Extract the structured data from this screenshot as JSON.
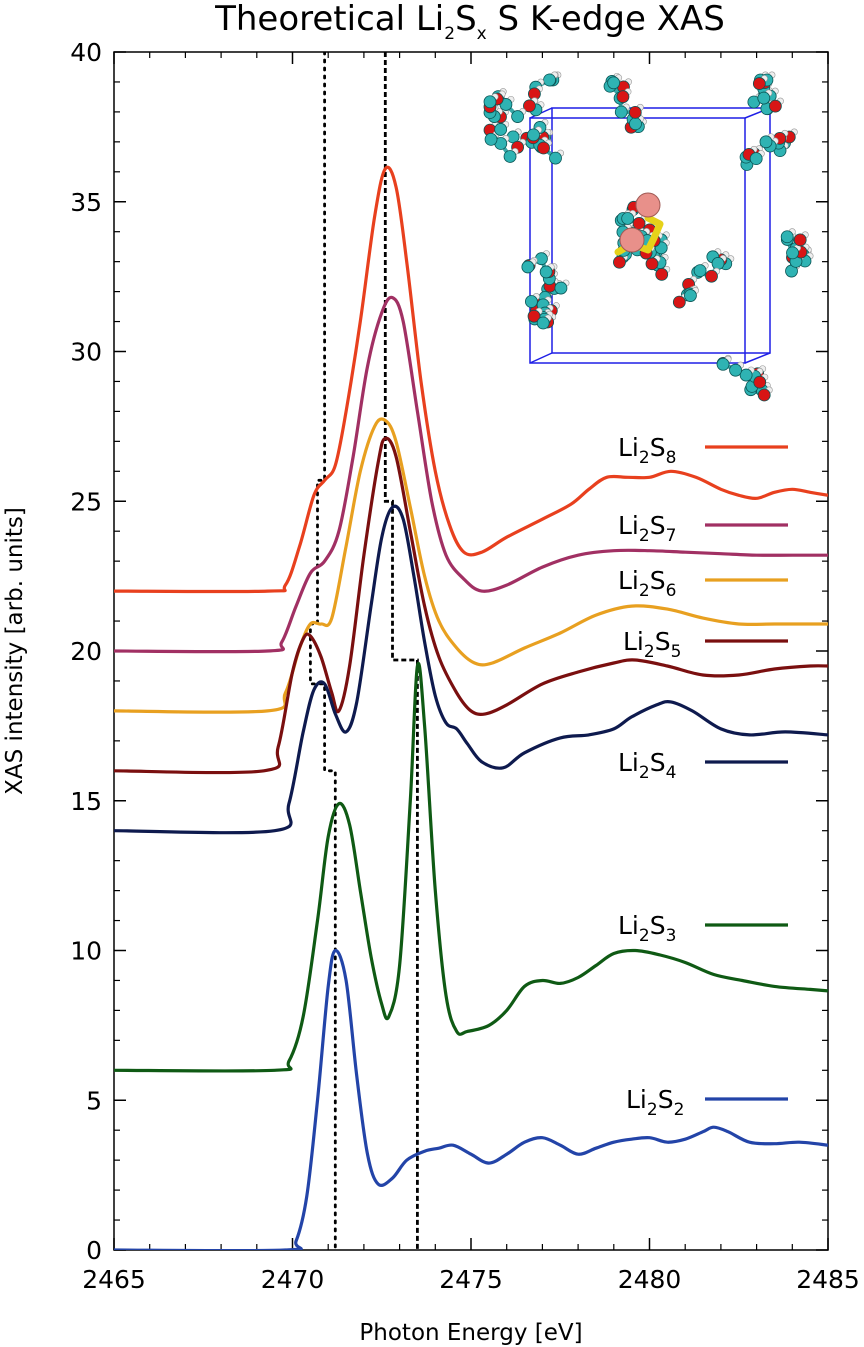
{
  "chart_data": {
    "type": "line",
    "title": {
      "main": "Theoretical Li",
      "sub1": "2",
      "mid": "S",
      "sub2": "x",
      "tail": " S K-edge XAS"
    },
    "xlabel": "Photon Energy [eV]",
    "ylabel": "XAS intensity [arb. units]",
    "xlim": [
      2465,
      2485
    ],
    "ylim": [
      0,
      40
    ],
    "xticks": [
      2465,
      2470,
      2475,
      2480,
      2485
    ],
    "yticks": [
      0,
      5,
      10,
      15,
      20,
      25,
      30,
      35,
      40
    ],
    "grid": false,
    "legend_position": "right",
    "inset": "molecular-structure-image",
    "series": [
      {
        "name": "Li2S8",
        "label_main": "Li",
        "label_sub1": "2",
        "label_mid": "S",
        "label_sub2": "8",
        "color": "#e8401e",
        "points": [
          [
            2465,
            22
          ],
          [
            2469.3,
            22
          ],
          [
            2469.8,
            22.2
          ],
          [
            2470.2,
            23.5
          ],
          [
            2470.6,
            25.2
          ],
          [
            2470.9,
            25.7
          ],
          [
            2471.2,
            26.2
          ],
          [
            2471.5,
            28
          ],
          [
            2471.9,
            31
          ],
          [
            2472.3,
            34.5
          ],
          [
            2472.6,
            36.1
          ],
          [
            2472.9,
            35.5
          ],
          [
            2473.2,
            33
          ],
          [
            2473.6,
            29
          ],
          [
            2474,
            26
          ],
          [
            2474.4,
            24.2
          ],
          [
            2474.8,
            23.3
          ],
          [
            2475.3,
            23.3
          ],
          [
            2476,
            23.8
          ],
          [
            2477,
            24.4
          ],
          [
            2477.8,
            24.9
          ],
          [
            2478.3,
            25.4
          ],
          [
            2478.8,
            25.8
          ],
          [
            2479.4,
            25.8
          ],
          [
            2480,
            25.8
          ],
          [
            2480.6,
            26
          ],
          [
            2481.3,
            25.8
          ],
          [
            2482,
            25.4
          ],
          [
            2482.5,
            25.2
          ],
          [
            2483,
            25.1
          ],
          [
            2483.5,
            25.3
          ],
          [
            2484,
            25.4
          ],
          [
            2484.5,
            25.3
          ],
          [
            2485,
            25.2
          ]
        ]
      },
      {
        "name": "Li2S7",
        "label_main": "Li",
        "label_sub1": "2",
        "label_mid": "S",
        "label_sub2": "7",
        "color": "#a13063",
        "points": [
          [
            2465,
            20
          ],
          [
            2469.3,
            20
          ],
          [
            2469.7,
            20.3
          ],
          [
            2470.1,
            21.5
          ],
          [
            2470.5,
            22.6
          ],
          [
            2470.9,
            23
          ],
          [
            2471.3,
            24
          ],
          [
            2471.7,
            26.5
          ],
          [
            2472.1,
            29.5
          ],
          [
            2472.5,
            31.3
          ],
          [
            2472.8,
            31.8
          ],
          [
            2473.1,
            31
          ],
          [
            2473.5,
            28
          ],
          [
            2473.9,
            25
          ],
          [
            2474.3,
            23.2
          ],
          [
            2474.8,
            22.4
          ],
          [
            2475.3,
            22
          ],
          [
            2476,
            22.2
          ],
          [
            2477,
            22.8
          ],
          [
            2478,
            23.2
          ],
          [
            2479,
            23.35
          ],
          [
            2480,
            23.35
          ],
          [
            2481,
            23.3
          ],
          [
            2482,
            23.25
          ],
          [
            2483,
            23.2
          ],
          [
            2484,
            23.2
          ],
          [
            2485,
            23.2
          ]
        ]
      },
      {
        "name": "Li2S6",
        "label_main": "Li",
        "label_sub1": "2",
        "label_mid": "S",
        "label_sub2": "6",
        "color": "#e8a020",
        "points": [
          [
            2465,
            18
          ],
          [
            2469.3,
            18
          ],
          [
            2469.8,
            18.6
          ],
          [
            2470.2,
            20.1
          ],
          [
            2470.5,
            20.9
          ],
          [
            2470.8,
            20.9
          ],
          [
            2471.1,
            21.1
          ],
          [
            2471.5,
            23.5
          ],
          [
            2471.9,
            26
          ],
          [
            2472.3,
            27.5
          ],
          [
            2472.6,
            27.7
          ],
          [
            2472.9,
            27
          ],
          [
            2473.3,
            24.8
          ],
          [
            2473.7,
            22.5
          ],
          [
            2474.1,
            21
          ],
          [
            2474.6,
            20.1
          ],
          [
            2475.1,
            19.6
          ],
          [
            2475.6,
            19.6
          ],
          [
            2476.5,
            20.1
          ],
          [
            2477.5,
            20.6
          ],
          [
            2478.5,
            21.2
          ],
          [
            2479.5,
            21.5
          ],
          [
            2480.5,
            21.4
          ],
          [
            2481.5,
            21.1
          ],
          [
            2482.5,
            20.9
          ],
          [
            2483.5,
            20.9
          ],
          [
            2484.5,
            20.9
          ],
          [
            2485,
            20.9
          ]
        ]
      },
      {
        "name": "Li2S5",
        "label_main": "Li",
        "label_sub1": "2",
        "label_mid": "S",
        "label_sub2": "5",
        "color": "#7a0f0f",
        "points": [
          [
            2465,
            16
          ],
          [
            2469.2,
            16
          ],
          [
            2469.6,
            16.8
          ],
          [
            2470,
            19.3
          ],
          [
            2470.3,
            20.4
          ],
          [
            2470.5,
            20.5
          ],
          [
            2470.8,
            19.8
          ],
          [
            2471.1,
            18.6
          ],
          [
            2471.3,
            18
          ],
          [
            2471.6,
            19.5
          ],
          [
            2472,
            23.2
          ],
          [
            2472.4,
            26.3
          ],
          [
            2472.6,
            27.1
          ],
          [
            2472.9,
            26.5
          ],
          [
            2473.3,
            24
          ],
          [
            2473.7,
            21.5
          ],
          [
            2474.1,
            19.8
          ],
          [
            2474.6,
            18.6
          ],
          [
            2475,
            18
          ],
          [
            2475.4,
            17.9
          ],
          [
            2476,
            18.2
          ],
          [
            2477,
            18.9
          ],
          [
            2478,
            19.3
          ],
          [
            2479,
            19.6
          ],
          [
            2479.6,
            19.7
          ],
          [
            2480.5,
            19.5
          ],
          [
            2481.5,
            19.2
          ],
          [
            2482.5,
            19.2
          ],
          [
            2483.5,
            19.4
          ],
          [
            2484.5,
            19.5
          ],
          [
            2485,
            19.5
          ]
        ]
      },
      {
        "name": "Li2S4",
        "label_main": "Li",
        "label_sub1": "2",
        "label_mid": "S",
        "label_sub2": "4",
        "color": "#0e1a4e",
        "points": [
          [
            2465,
            14
          ],
          [
            2469.5,
            14
          ],
          [
            2469.9,
            14.9
          ],
          [
            2470.3,
            17.3
          ],
          [
            2470.6,
            18.7
          ],
          [
            2470.9,
            18.9
          ],
          [
            2471.2,
            17.9
          ],
          [
            2471.5,
            17.3
          ],
          [
            2471.8,
            18.3
          ],
          [
            2472.2,
            21.5
          ],
          [
            2472.5,
            23.8
          ],
          [
            2472.8,
            24.8
          ],
          [
            2473.1,
            24.4
          ],
          [
            2473.4,
            22.5
          ],
          [
            2473.7,
            20.3
          ],
          [
            2474,
            18.5
          ],
          [
            2474.3,
            17.6
          ],
          [
            2474.6,
            17.4
          ],
          [
            2474.9,
            16.9
          ],
          [
            2475.3,
            16.3
          ],
          [
            2475.9,
            16.1
          ],
          [
            2476.5,
            16.6
          ],
          [
            2477.5,
            17.1
          ],
          [
            2478.3,
            17.2
          ],
          [
            2479,
            17.4
          ],
          [
            2479.5,
            17.8
          ],
          [
            2480.2,
            18.2
          ],
          [
            2480.6,
            18.3
          ],
          [
            2481.2,
            18
          ],
          [
            2482,
            17.4
          ],
          [
            2482.8,
            17.2
          ],
          [
            2483.8,
            17.3
          ],
          [
            2485,
            17.2
          ]
        ]
      },
      {
        "name": "Li2S3",
        "label_main": "Li",
        "label_sub1": "2",
        "label_mid": "S",
        "label_sub2": "3",
        "color": "#0f5a14",
        "points": [
          [
            2465,
            6
          ],
          [
            2469.5,
            6
          ],
          [
            2469.9,
            6.3
          ],
          [
            2470.3,
            7.8
          ],
          [
            2470.7,
            11
          ],
          [
            2471,
            13.8
          ],
          [
            2471.3,
            14.9
          ],
          [
            2471.6,
            14.2
          ],
          [
            2471.9,
            12
          ],
          [
            2472.2,
            9.8
          ],
          [
            2472.5,
            8.2
          ],
          [
            2472.7,
            7.8
          ],
          [
            2473,
            9.5
          ],
          [
            2473.3,
            15
          ],
          [
            2473.5,
            19.5
          ],
          [
            2473.7,
            17.5
          ],
          [
            2474,
            12
          ],
          [
            2474.3,
            8.5
          ],
          [
            2474.6,
            7.3
          ],
          [
            2474.9,
            7.3
          ],
          [
            2475.5,
            7.5
          ],
          [
            2476,
            8
          ],
          [
            2476.5,
            8.8
          ],
          [
            2477,
            9
          ],
          [
            2477.5,
            8.9
          ],
          [
            2478,
            9.1
          ],
          [
            2478.5,
            9.5
          ],
          [
            2479,
            9.9
          ],
          [
            2479.6,
            10
          ],
          [
            2480.3,
            9.85
          ],
          [
            2481,
            9.6
          ],
          [
            2481.8,
            9.2
          ],
          [
            2482.6,
            9
          ],
          [
            2483.5,
            8.8
          ],
          [
            2484.5,
            8.7
          ],
          [
            2485,
            8.65
          ]
        ]
      },
      {
        "name": "Li2S2",
        "label_main": "Li",
        "label_sub1": "2",
        "label_mid": "S",
        "label_sub2": "2",
        "color": "#2344a8",
        "points": [
          [
            2465,
            0
          ],
          [
            2469.8,
            0
          ],
          [
            2470.1,
            0.3
          ],
          [
            2470.4,
            1.8
          ],
          [
            2470.7,
            5
          ],
          [
            2471,
            8.8
          ],
          [
            2471.2,
            10
          ],
          [
            2471.5,
            9
          ],
          [
            2471.8,
            5.8
          ],
          [
            2472.1,
            3.2
          ],
          [
            2472.4,
            2.2
          ],
          [
            2472.8,
            2.4
          ],
          [
            2473.2,
            3
          ],
          [
            2473.7,
            3.3
          ],
          [
            2474.1,
            3.4
          ],
          [
            2474.5,
            3.5
          ],
          [
            2475,
            3.2
          ],
          [
            2475.5,
            2.9
          ],
          [
            2476,
            3.2
          ],
          [
            2476.5,
            3.6
          ],
          [
            2477,
            3.75
          ],
          [
            2477.5,
            3.5
          ],
          [
            2478,
            3.2
          ],
          [
            2478.5,
            3.4
          ],
          [
            2479,
            3.6
          ],
          [
            2479.5,
            3.7
          ],
          [
            2480,
            3.75
          ],
          [
            2480.5,
            3.6
          ],
          [
            2481,
            3.7
          ],
          [
            2481.5,
            3.95
          ],
          [
            2481.8,
            4.1
          ],
          [
            2482.2,
            3.95
          ],
          [
            2482.8,
            3.6
          ],
          [
            2483.5,
            3.55
          ],
          [
            2484.2,
            3.6
          ],
          [
            2485,
            3.5
          ]
        ]
      }
    ],
    "guide_lines": [
      {
        "style": "dotted",
        "points": [
          [
            2470.9,
            40
          ],
          [
            2470.9,
            25.7
          ],
          [
            2470.7,
            25.7
          ],
          [
            2470.7,
            20.9
          ],
          [
            2470.5,
            20.9
          ],
          [
            2470.5,
            18.9
          ],
          [
            2470.9,
            18.9
          ],
          [
            2470.9,
            16.0
          ],
          [
            2471.2,
            16.0
          ],
          [
            2471.2,
            0
          ]
        ]
      },
      {
        "style": "dashed",
        "points": [
          [
            2472.6,
            40
          ],
          [
            2472.6,
            25.0
          ],
          [
            2472.8,
            25.0
          ],
          [
            2472.8,
            19.7
          ],
          [
            2473.5,
            19.7
          ],
          [
            2473.5,
            0
          ]
        ]
      }
    ]
  }
}
